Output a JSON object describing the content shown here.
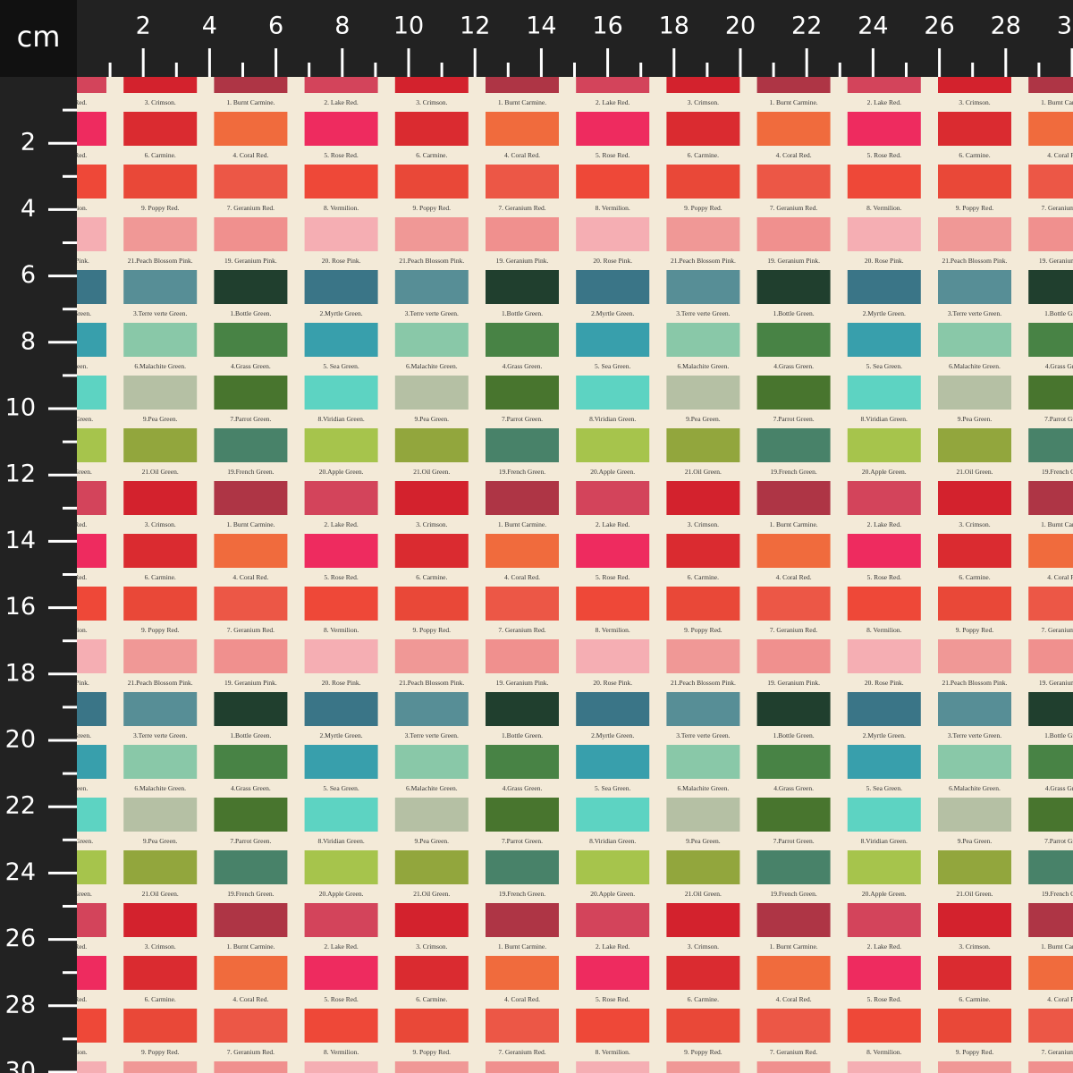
{
  "ruler": {
    "unit": "cm",
    "ticks": [
      2,
      4,
      6,
      8,
      10,
      12,
      14,
      16,
      18,
      20,
      22,
      24,
      26,
      28,
      30
    ]
  },
  "swatch_tile": {
    "rows": [
      [
        {
          "label": "3. Crimson.",
          "color": "#d0101e"
        },
        {
          "label": "1. Burnt Carmine.",
          "color": "#a82538"
        },
        {
          "label": "2. Lake Red.",
          "color": "#d03550"
        }
      ],
      [
        {
          "label": "6. Carmine.",
          "color": "#d81a22"
        },
        {
          "label": "4. Coral Red.",
          "color": "#f06030"
        },
        {
          "label": "5. Rose Red.",
          "color": "#ee1a55"
        }
      ],
      [
        {
          "label": "9. Poppy Red.",
          "color": "#e83a2a"
        },
        {
          "label": "7. Geranium Red.",
          "color": "#ec4a3a"
        },
        {
          "label": "8. Vermilion.",
          "color": "#ee3a2a"
        }
      ],
      [
        {
          "label": "21.Peach Blossom Pink.",
          "color": "#f09090"
        },
        {
          "label": "19. Geranium Pink.",
          "color": "#f08888"
        },
        {
          "label": "20. Rose Pink.",
          "color": "#f5a8b0"
        }
      ],
      [
        {
          "label": "3.Terre verte Green.",
          "color": "#4a8590"
        },
        {
          "label": "1.Bottle Green.",
          "color": "#0e3020"
        },
        {
          "label": "2.Myrtle Green.",
          "color": "#2a6a80"
        }
      ],
      [
        {
          "label": "6.Malachite Green.",
          "color": "#80c4a4"
        },
        {
          "label": "4.Grass Green.",
          "color": "#3a7a38"
        },
        {
          "label": "5. Sea Green.",
          "color": "#2898a8"
        }
      ],
      [
        {
          "label": "9.Pea Green.",
          "color": "#b0bca0"
        },
        {
          "label": "7.Parrot Green.",
          "color": "#3a6a20"
        },
        {
          "label": "8.Viridian Green.",
          "color": "#50d0c0"
        }
      ],
      [
        {
          "label": "21.Oil Green.",
          "color": "#8aa030"
        },
        {
          "label": "19.French Green.",
          "color": "#3a7860"
        },
        {
          "label": "20.Apple Green.",
          "color": "#a0c040"
        }
      ]
    ]
  }
}
